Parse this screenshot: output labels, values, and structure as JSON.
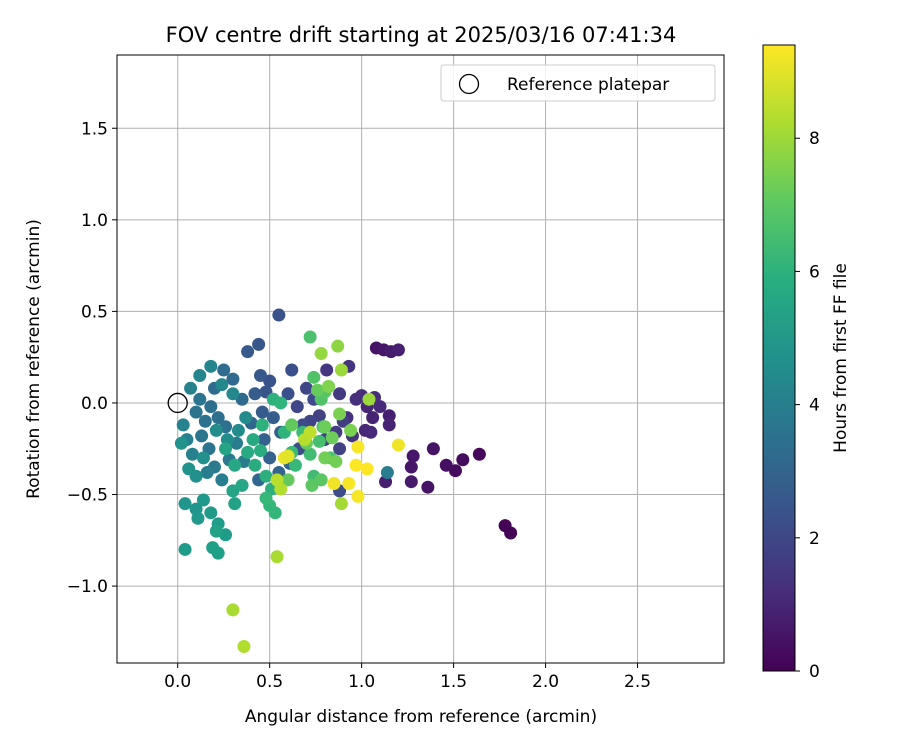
{
  "chart_data": {
    "type": "scatter",
    "title": "FOV centre drift starting at 2025/03/16 07:41:34",
    "xlabel": "Angular distance from reference (arcmin)",
    "ylabel": "Rotation from reference (arcmin)",
    "xlim": [
      -0.33,
      2.97
    ],
    "ylim": [
      -1.42,
      1.9
    ],
    "xticks": [
      0.0,
      0.5,
      1.0,
      1.5,
      2.0,
      2.5
    ],
    "xtick_labels": [
      "0.0",
      "0.5",
      "1.0",
      "1.5",
      "2.0",
      "2.5"
    ],
    "yticks": [
      -1.0,
      -0.5,
      0.0,
      0.5,
      1.0,
      1.5
    ],
    "ytick_labels": [
      "−1.0",
      "−0.5",
      "0.0",
      "0.5",
      "1.0",
      "1.5"
    ],
    "grid": true,
    "legend": {
      "placement": "top-right",
      "label": "Reference platepar",
      "marker": "open-circle"
    },
    "reference_point": {
      "x": 0.0,
      "y": 0.0
    },
    "colorbar": {
      "label": "Hours from first FF file",
      "colormap": "viridis",
      "range": [
        0,
        9.4
      ],
      "ticks": [
        0,
        2,
        4,
        6,
        8
      ],
      "tick_labels": [
        "0",
        "2",
        "4",
        "6",
        "8"
      ]
    },
    "points": [
      {
        "x": 1.78,
        "y": -0.67,
        "h": 0.1
      },
      {
        "x": 1.81,
        "y": -0.71,
        "h": 0.1
      },
      {
        "x": 1.64,
        "y": -0.28,
        "h": 0.2
      },
      {
        "x": 1.55,
        "y": -0.31,
        "h": 0.3
      },
      {
        "x": 1.51,
        "y": -0.37,
        "h": 0.3
      },
      {
        "x": 1.46,
        "y": -0.34,
        "h": 0.4
      },
      {
        "x": 1.39,
        "y": -0.25,
        "h": 0.5
      },
      {
        "x": 1.36,
        "y": -0.46,
        "h": 0.5
      },
      {
        "x": 1.28,
        "y": -0.29,
        "h": 0.6
      },
      {
        "x": 1.27,
        "y": -0.35,
        "h": 0.6
      },
      {
        "x": 1.27,
        "y": -0.43,
        "h": 0.7
      },
      {
        "x": 1.13,
        "y": -0.43,
        "h": 0.8
      },
      {
        "x": 1.15,
        "y": -0.07,
        "h": 0.8
      },
      {
        "x": 1.15,
        "y": -0.12,
        "h": 0.9
      },
      {
        "x": 1.06,
        "y": -0.08,
        "h": 0.9
      },
      {
        "x": 1.03,
        "y": -0.02,
        "h": 1.0
      },
      {
        "x": 1.02,
        "y": -0.15,
        "h": 1.0
      },
      {
        "x": 1.05,
        "y": -0.16,
        "h": 1.1
      },
      {
        "x": 1.1,
        "y": -0.02,
        "h": 1.1
      },
      {
        "x": 1.07,
        "y": 0.03,
        "h": 1.2
      },
      {
        "x": 1.0,
        "y": 0.04,
        "h": 1.2
      },
      {
        "x": 0.97,
        "y": 0.02,
        "h": 1.3
      },
      {
        "x": 0.92,
        "y": -0.08,
        "h": 1.3
      },
      {
        "x": 0.95,
        "y": -0.18,
        "h": 1.4
      },
      {
        "x": 1.08,
        "y": 0.3,
        "h": 0.5
      },
      {
        "x": 1.12,
        "y": 0.29,
        "h": 0.6
      },
      {
        "x": 1.16,
        "y": 0.28,
        "h": 0.7
      },
      {
        "x": 1.2,
        "y": 0.29,
        "h": 0.8
      },
      {
        "x": 0.93,
        "y": 0.2,
        "h": 1.4
      },
      {
        "x": 0.81,
        "y": 0.18,
        "h": 1.5
      },
      {
        "x": 0.88,
        "y": 0.05,
        "h": 1.6
      },
      {
        "x": 0.9,
        "y": -0.1,
        "h": 1.7
      },
      {
        "x": 0.86,
        "y": -0.16,
        "h": 1.7
      },
      {
        "x": 0.88,
        "y": -0.25,
        "h": 1.8
      },
      {
        "x": 0.77,
        "y": -0.07,
        "h": 1.8
      },
      {
        "x": 0.8,
        "y": -0.2,
        "h": 1.9
      },
      {
        "x": 0.72,
        "y": -0.1,
        "h": 1.9
      },
      {
        "x": 0.7,
        "y": 0.08,
        "h": 2.0
      },
      {
        "x": 0.65,
        "y": -0.02,
        "h": 2.0
      },
      {
        "x": 0.68,
        "y": -0.12,
        "h": 2.1
      },
      {
        "x": 0.74,
        "y": 0.02,
        "h": 2.1
      },
      {
        "x": 0.88,
        "y": -0.48,
        "h": 2.2
      },
      {
        "x": 0.66,
        "y": -0.25,
        "h": 2.2
      },
      {
        "x": 0.6,
        "y": 0.05,
        "h": 2.3
      },
      {
        "x": 0.62,
        "y": 0.18,
        "h": 2.3
      },
      {
        "x": 0.55,
        "y": 0.48,
        "h": 2.4
      },
      {
        "x": 0.5,
        "y": 0.12,
        "h": 2.4
      },
      {
        "x": 0.48,
        "y": 0.06,
        "h": 2.5
      },
      {
        "x": 0.44,
        "y": 0.32,
        "h": 2.5
      },
      {
        "x": 0.38,
        "y": 0.28,
        "h": 2.6
      },
      {
        "x": 0.45,
        "y": 0.15,
        "h": 2.6
      },
      {
        "x": 0.42,
        "y": 0.05,
        "h": 2.7
      },
      {
        "x": 0.46,
        "y": -0.05,
        "h": 2.7
      },
      {
        "x": 0.52,
        "y": -0.08,
        "h": 2.8
      },
      {
        "x": 0.56,
        "y": -0.16,
        "h": 2.8
      },
      {
        "x": 0.47,
        "y": -0.2,
        "h": 2.9
      },
      {
        "x": 0.5,
        "y": -0.3,
        "h": 2.9
      },
      {
        "x": 0.55,
        "y": -0.38,
        "h": 3.0
      },
      {
        "x": 0.61,
        "y": -0.33,
        "h": 3.0
      },
      {
        "x": 0.44,
        "y": -0.42,
        "h": 3.1
      },
      {
        "x": 0.4,
        "y": -0.11,
        "h": 3.1
      },
      {
        "x": 0.35,
        "y": 0.02,
        "h": 3.2
      },
      {
        "x": 0.3,
        "y": 0.13,
        "h": 3.2
      },
      {
        "x": 0.25,
        "y": 0.18,
        "h": 3.3
      },
      {
        "x": 0.2,
        "y": 0.08,
        "h": 3.3
      },
      {
        "x": 0.18,
        "y": -0.02,
        "h": 3.4
      },
      {
        "x": 0.22,
        "y": -0.08,
        "h": 3.4
      },
      {
        "x": 0.26,
        "y": -0.13,
        "h": 3.5
      },
      {
        "x": 0.15,
        "y": -0.1,
        "h": 3.5
      },
      {
        "x": 0.12,
        "y": 0.02,
        "h": 3.6
      },
      {
        "x": 0.1,
        "y": -0.05,
        "h": 3.6
      },
      {
        "x": 0.13,
        "y": -0.18,
        "h": 3.7
      },
      {
        "x": 0.17,
        "y": -0.25,
        "h": 3.7
      },
      {
        "x": 0.2,
        "y": -0.35,
        "h": 3.8
      },
      {
        "x": 0.28,
        "y": -0.31,
        "h": 3.8
      },
      {
        "x": 0.32,
        "y": -0.22,
        "h": 3.9
      },
      {
        "x": 0.36,
        "y": -0.32,
        "h": 3.9
      },
      {
        "x": 0.24,
        "y": -0.42,
        "h": 4.0
      },
      {
        "x": 0.16,
        "y": -0.38,
        "h": 4.0
      },
      {
        "x": 0.08,
        "y": -0.28,
        "h": 4.1
      },
      {
        "x": 0.05,
        "y": -0.2,
        "h": 4.1
      },
      {
        "x": 0.03,
        "y": -0.12,
        "h": 4.2
      },
      {
        "x": 0.07,
        "y": 0.08,
        "h": 4.2
      },
      {
        "x": 0.12,
        "y": 0.15,
        "h": 4.3
      },
      {
        "x": 0.18,
        "y": 0.2,
        "h": 4.3
      },
      {
        "x": 0.24,
        "y": 0.1,
        "h": 4.4
      },
      {
        "x": 0.3,
        "y": 0.05,
        "h": 4.4
      },
      {
        "x": 1.14,
        "y": -0.38,
        "h": 4.0
      },
      {
        "x": 0.37,
        "y": -0.08,
        "h": 4.5
      },
      {
        "x": 0.33,
        "y": -0.15,
        "h": 4.5
      },
      {
        "x": 0.27,
        "y": -0.2,
        "h": 4.6
      },
      {
        "x": 0.21,
        "y": -0.15,
        "h": 4.6
      },
      {
        "x": 0.14,
        "y": -0.3,
        "h": 4.7
      },
      {
        "x": 0.1,
        "y": -0.4,
        "h": 4.7
      },
      {
        "x": 0.06,
        "y": -0.36,
        "h": 4.8
      },
      {
        "x": 0.02,
        "y": -0.22,
        "h": 4.8
      },
      {
        "x": 0.04,
        "y": -0.55,
        "h": 4.9
      },
      {
        "x": 0.1,
        "y": -0.58,
        "h": 4.9
      },
      {
        "x": 0.14,
        "y": -0.53,
        "h": 5.0
      },
      {
        "x": 0.11,
        "y": -0.63,
        "h": 5.0
      },
      {
        "x": 0.04,
        "y": -0.8,
        "h": 5.1
      },
      {
        "x": 0.18,
        "y": -0.6,
        "h": 5.1
      },
      {
        "x": 0.22,
        "y": -0.66,
        "h": 5.2
      },
      {
        "x": 0.26,
        "y": -0.72,
        "h": 5.2
      },
      {
        "x": 0.19,
        "y": -0.79,
        "h": 5.3
      },
      {
        "x": 0.22,
        "y": -0.82,
        "h": 5.3
      },
      {
        "x": 0.21,
        "y": -0.7,
        "h": 5.4
      },
      {
        "x": 0.31,
        "y": -0.55,
        "h": 5.4
      },
      {
        "x": 0.3,
        "y": -0.48,
        "h": 5.5
      },
      {
        "x": 0.26,
        "y": -0.25,
        "h": 5.5
      },
      {
        "x": 0.31,
        "y": -0.34,
        "h": 5.6
      },
      {
        "x": 0.35,
        "y": -0.45,
        "h": 5.6
      },
      {
        "x": 0.38,
        "y": -0.27,
        "h": 5.7
      },
      {
        "x": 0.41,
        "y": -0.2,
        "h": 5.7
      },
      {
        "x": 0.42,
        "y": -0.34,
        "h": 5.8
      },
      {
        "x": 0.45,
        "y": -0.26,
        "h": 5.8
      },
      {
        "x": 0.48,
        "y": -0.4,
        "h": 5.9
      },
      {
        "x": 0.51,
        "y": -0.47,
        "h": 5.9
      },
      {
        "x": 0.46,
        "y": -0.12,
        "h": 6.0
      },
      {
        "x": 0.52,
        "y": 0.02,
        "h": 6.0
      },
      {
        "x": 0.56,
        "y": 0.0,
        "h": 6.1
      },
      {
        "x": 0.58,
        "y": -0.16,
        "h": 6.1
      },
      {
        "x": 0.5,
        "y": -0.56,
        "h": 6.2
      },
      {
        "x": 0.53,
        "y": -0.6,
        "h": 6.2
      },
      {
        "x": 0.48,
        "y": -0.52,
        "h": 6.3
      },
      {
        "x": 0.64,
        "y": -0.34,
        "h": 6.3
      },
      {
        "x": 0.62,
        "y": -0.27,
        "h": 6.4
      },
      {
        "x": 0.68,
        "y": -0.16,
        "h": 6.4
      },
      {
        "x": 0.72,
        "y": -0.28,
        "h": 6.5
      },
      {
        "x": 0.74,
        "y": -0.4,
        "h": 6.5
      },
      {
        "x": 0.77,
        "y": -0.21,
        "h": 6.6
      },
      {
        "x": 0.79,
        "y": -0.13,
        "h": 6.6
      },
      {
        "x": 0.83,
        "y": -0.3,
        "h": 6.7
      },
      {
        "x": 0.72,
        "y": 0.36,
        "h": 6.7
      },
      {
        "x": 0.74,
        "y": 0.14,
        "h": 6.8
      },
      {
        "x": 0.78,
        "y": 0.02,
        "h": 6.8
      },
      {
        "x": 0.8,
        "y": 0.06,
        "h": 6.9
      },
      {
        "x": 0.82,
        "y": 0.09,
        "h": 6.9
      },
      {
        "x": 0.73,
        "y": -0.45,
        "h": 7.0
      },
      {
        "x": 0.78,
        "y": -0.42,
        "h": 7.0
      },
      {
        "x": 0.6,
        "y": -0.42,
        "h": 7.1
      },
      {
        "x": 0.62,
        "y": -0.12,
        "h": 7.1
      },
      {
        "x": 0.7,
        "y": -0.22,
        "h": 7.2
      },
      {
        "x": 0.76,
        "y": 0.07,
        "h": 7.2
      },
      {
        "x": 0.8,
        "y": -0.13,
        "h": 7.3
      },
      {
        "x": 0.84,
        "y": -0.19,
        "h": 7.3
      },
      {
        "x": 0.8,
        "y": -0.3,
        "h": 7.4
      },
      {
        "x": 0.86,
        "y": -0.32,
        "h": 7.4
      },
      {
        "x": 0.88,
        "y": -0.06,
        "h": 7.5
      },
      {
        "x": 0.94,
        "y": -0.15,
        "h": 7.5
      },
      {
        "x": 0.82,
        "y": 0.09,
        "h": 7.6
      },
      {
        "x": 0.87,
        "y": 0.31,
        "h": 7.8
      },
      {
        "x": 0.78,
        "y": 0.27,
        "h": 7.9
      },
      {
        "x": 0.89,
        "y": 0.18,
        "h": 8.0
      },
      {
        "x": 1.04,
        "y": 0.02,
        "h": 8.0
      },
      {
        "x": 0.89,
        "y": -0.55,
        "h": 8.1
      },
      {
        "x": 0.3,
        "y": -1.13,
        "h": 8.2
      },
      {
        "x": 0.36,
        "y": -1.33,
        "h": 8.3
      },
      {
        "x": 0.54,
        "y": -0.84,
        "h": 8.2
      },
      {
        "x": 0.56,
        "y": -0.47,
        "h": 8.3
      },
      {
        "x": 0.54,
        "y": -0.42,
        "h": 8.4
      },
      {
        "x": 0.69,
        "y": -0.2,
        "h": 8.4
      },
      {
        "x": 0.72,
        "y": -0.16,
        "h": 8.5
      },
      {
        "x": 0.85,
        "y": -0.44,
        "h": 9.2
      },
      {
        "x": 0.93,
        "y": -0.44,
        "h": 9.3
      },
      {
        "x": 0.98,
        "y": -0.51,
        "h": 9.3
      },
      {
        "x": 0.97,
        "y": -0.34,
        "h": 9.4
      },
      {
        "x": 1.03,
        "y": -0.36,
        "h": 9.4
      },
      {
        "x": 0.98,
        "y": -0.24,
        "h": 9.3
      },
      {
        "x": 1.2,
        "y": -0.23,
        "h": 9.2
      },
      {
        "x": 0.58,
        "y": -0.3,
        "h": 9.1
      },
      {
        "x": 0.6,
        "y": -0.29,
        "h": 9.0
      }
    ]
  }
}
